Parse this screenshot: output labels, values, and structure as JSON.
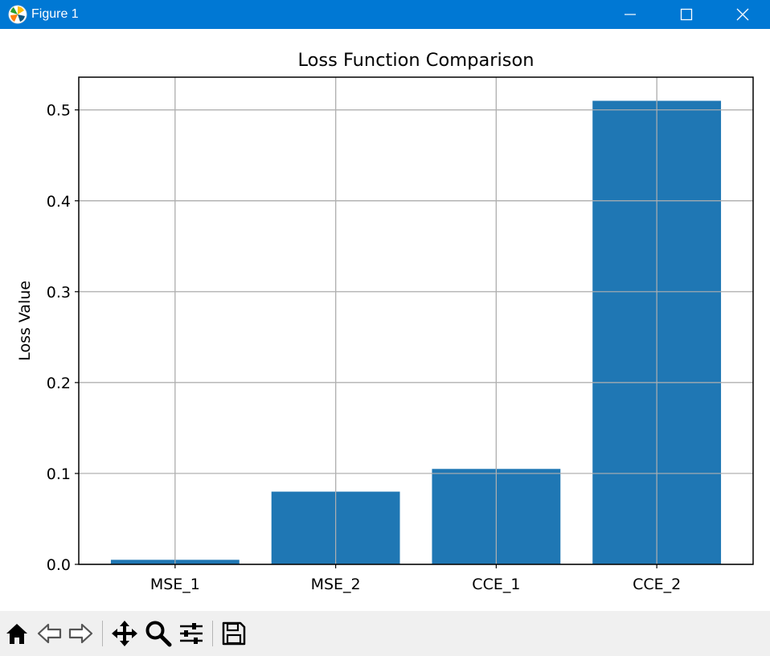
{
  "window": {
    "title": "Figure 1",
    "icon": "matplotlib-logo-icon",
    "accent": "#0078d4",
    "controls": [
      "minimize-icon",
      "maximize-icon",
      "close-icon"
    ]
  },
  "toolbar": {
    "tools": [
      "home-icon",
      "back-arrow-icon",
      "forward-arrow-icon",
      "pan-move-icon",
      "zoom-magnifier-icon",
      "configure-subplots-icon",
      "save-floppy-icon"
    ]
  },
  "chart_data": {
    "type": "bar",
    "title": "Loss Function Comparison",
    "xlabel": "",
    "ylabel": "Loss Value",
    "categories": [
      "MSE_1",
      "MSE_2",
      "CCE_1",
      "CCE_2"
    ],
    "values": [
      0.005,
      0.08,
      0.105,
      0.51
    ],
    "ylim": [
      0.0,
      0.536
    ],
    "yticks": [
      0.0,
      0.1,
      0.2,
      0.3,
      0.4,
      0.5
    ],
    "ytick_labels": [
      "0.0",
      "0.1",
      "0.2",
      "0.3",
      "0.4",
      "0.5"
    ],
    "grid": true,
    "bar_color": "#1f77b4",
    "grid_color": "#b0b0b0"
  }
}
